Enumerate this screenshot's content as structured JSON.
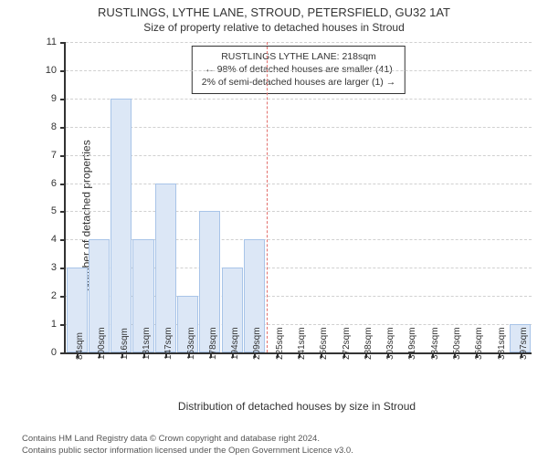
{
  "title_main": "RUSTLINGS, LYTHE LANE, STROUD, PETERSFIELD, GU32 1AT",
  "title_sub": "Size of property relative to detached houses in Stroud",
  "ylabel": "Number of detached properties",
  "xlabel": "Distribution of detached houses by size in Stroud",
  "callout": {
    "line1": "RUSTLINGS LYTHE LANE: 218sqm",
    "line2": "← 98% of detached houses are smaller (41)",
    "line3": "2% of semi-detached houses are larger (1) →"
  },
  "footer": {
    "line1": "Contains HM Land Registry data © Crown copyright and database right 2024.",
    "line2": "Contains public sector information licensed under the Open Government Licence v3.0."
  },
  "chart": {
    "type": "bar",
    "ylim": [
      0,
      11
    ],
    "ytick_step": 1,
    "bar_fill": "#dce7f6",
    "bar_border": "#a8c4e8",
    "grid_color": "#d0d0d0",
    "axis_color": "#333333",
    "background_color": "#ffffff",
    "refline_color": "#e2706d",
    "refline_x": 218,
    "title_fontsize": 13,
    "label_fontsize": 12,
    "tick_fontsize": 10,
    "bar_width_ratio": 0.95,
    "categories": [
      "84sqm",
      "100sqm",
      "116sqm",
      "131sqm",
      "147sqm",
      "163sqm",
      "178sqm",
      "194sqm",
      "209sqm",
      "225sqm",
      "241sqm",
      "256sqm",
      "272sqm",
      "288sqm",
      "303sqm",
      "319sqm",
      "334sqm",
      "350sqm",
      "366sqm",
      "381sqm",
      "397sqm"
    ],
    "values": [
      3,
      4,
      9,
      4,
      6,
      2,
      5,
      3,
      4,
      0,
      0,
      0,
      0,
      0,
      0,
      0,
      0,
      0,
      0,
      0,
      1
    ],
    "x_numeric": [
      84,
      100,
      116,
      131,
      147,
      163,
      178,
      194,
      209,
      225,
      241,
      256,
      272,
      288,
      303,
      319,
      334,
      350,
      366,
      381,
      397
    ]
  }
}
